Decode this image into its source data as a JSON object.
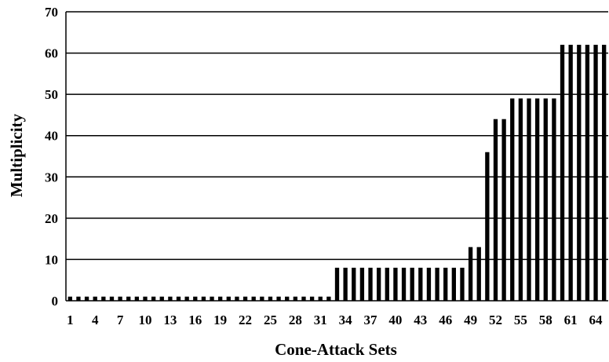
{
  "chart_data": {
    "type": "bar",
    "xlabel": "Cone-Attack Sets",
    "ylabel": "Multiplicity",
    "ylim": [
      0,
      70
    ],
    "yticks": [
      0,
      10,
      20,
      30,
      40,
      50,
      60,
      70
    ],
    "grid": true,
    "xtick_labels": [
      "1",
      "4",
      "7",
      "10",
      "13",
      "16",
      "19",
      "22",
      "25",
      "28",
      "31",
      "34",
      "37",
      "40",
      "43",
      "46",
      "49",
      "52",
      "55",
      "58",
      "61",
      "64"
    ],
    "categories": [
      1,
      2,
      3,
      4,
      5,
      6,
      7,
      8,
      9,
      10,
      11,
      12,
      13,
      14,
      15,
      16,
      17,
      18,
      19,
      20,
      21,
      22,
      23,
      24,
      25,
      26,
      27,
      28,
      29,
      30,
      31,
      32,
      33,
      34,
      35,
      36,
      37,
      38,
      39,
      40,
      41,
      42,
      43,
      44,
      45,
      46,
      47,
      48,
      49,
      50,
      51,
      52,
      53,
      54,
      55,
      56,
      57,
      58,
      59,
      60,
      61,
      62,
      63,
      64,
      65
    ],
    "values": [
      1,
      1,
      1,
      1,
      1,
      1,
      1,
      1,
      1,
      1,
      1,
      1,
      1,
      1,
      1,
      1,
      1,
      1,
      1,
      1,
      1,
      1,
      1,
      1,
      1,
      1,
      1,
      1,
      1,
      1,
      1,
      1,
      8,
      8,
      8,
      8,
      8,
      8,
      8,
      8,
      8,
      8,
      8,
      8,
      8,
      8,
      8,
      8,
      13,
      13,
      36,
      44,
      44,
      49,
      49,
      49,
      49,
      49,
      49,
      62,
      62,
      62,
      62,
      62,
      62
    ]
  }
}
